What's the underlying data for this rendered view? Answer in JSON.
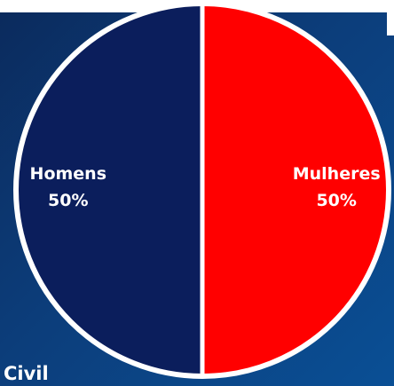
{
  "chart_data": {
    "type": "pie",
    "slices": [
      {
        "label": "Mulheres",
        "value": 50,
        "value_label": "50%",
        "color": "#ff0000"
      },
      {
        "label": "Homens",
        "value": 50,
        "value_label": "50%",
        "color": "#0b1e5c"
      }
    ],
    "start_angle_deg": 0,
    "direction": "clockwise",
    "border_color": "#ffffff"
  },
  "caption": "Civil",
  "colors": {
    "background_start": "#0b2a5c",
    "background_end": "#0a4f95"
  }
}
